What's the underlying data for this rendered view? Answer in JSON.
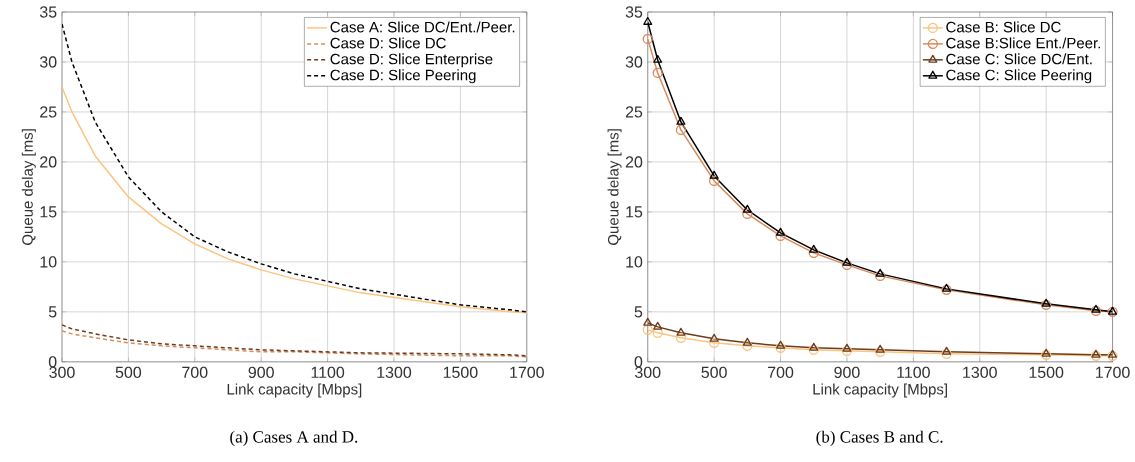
{
  "chart_data": [
    {
      "type": "line",
      "xlabel": "Link capacity [Mbps]",
      "ylabel": "Queue delay [ms]",
      "annotations": [
        "(a) Cases A and D."
      ],
      "x": [
        300,
        330,
        400,
        500,
        600,
        700,
        800,
        900,
        1000,
        1200,
        1500,
        1650,
        1700
      ],
      "xlim": [
        300,
        1700
      ],
      "ylim": [
        0,
        35
      ],
      "xticks": [
        300,
        500,
        700,
        900,
        1100,
        1300,
        1500,
        1700
      ],
      "yticks": [
        0,
        5,
        10,
        15,
        20,
        25,
        30,
        35
      ],
      "grid": true,
      "legend": "top right",
      "marker": "none",
      "series": [
        {
          "name": "Case A: Slice DC/Ent./Peer.",
          "color": "#fdc47f",
          "line_style": "solid",
          "values": [
            27.5,
            25.0,
            20.6,
            16.5,
            13.8,
            11.8,
            10.3,
            9.2,
            8.3,
            6.9,
            5.5,
            5.0,
            4.9
          ]
        },
        {
          "name": "Case D: Slice DC",
          "color": "#d9895a",
          "line_style": "dashed",
          "values": [
            3.1,
            2.8,
            2.4,
            1.9,
            1.6,
            1.4,
            1.2,
            1.0,
            1.0,
            0.8,
            0.6,
            0.6,
            0.5
          ]
        },
        {
          "name": "Case D: Slice Enterprise",
          "color": "#6b3c1e",
          "line_style": "dashed",
          "values": [
            3.7,
            3.3,
            2.8,
            2.2,
            1.8,
            1.6,
            1.4,
            1.2,
            1.1,
            0.9,
            0.8,
            0.7,
            0.6
          ]
        },
        {
          "name": "Case D: Slice Peering",
          "color": "#000000",
          "line_style": "dashed",
          "values": [
            33.8,
            30.0,
            24.0,
            18.5,
            15.0,
            12.5,
            11.0,
            9.8,
            8.8,
            7.3,
            5.7,
            5.2,
            5.0
          ]
        }
      ]
    },
    {
      "type": "line",
      "xlabel": "Link capacity [Mbps]",
      "ylabel": "Queue delay [ms]",
      "annotations": [
        "(b) Cases B and C."
      ],
      "x": [
        300,
        330,
        400,
        500,
        600,
        700,
        800,
        900,
        1000,
        1200,
        1500,
        1650,
        1700
      ],
      "xlim": [
        300,
        1700
      ],
      "ylim": [
        0,
        35
      ],
      "xticks": [
        300,
        500,
        700,
        900,
        1100,
        1300,
        1500,
        1700
      ],
      "yticks": [
        0,
        5,
        10,
        15,
        20,
        25,
        30,
        35
      ],
      "grid": true,
      "legend": "top right",
      "line_style": "solid",
      "series": [
        {
          "name": "Case B: Slice DC",
          "color": "#fdc47f",
          "marker": "circle",
          "values": [
            3.2,
            2.9,
            2.4,
            1.9,
            1.6,
            1.4,
            1.2,
            1.1,
            1.0,
            0.8,
            0.7,
            0.6,
            0.6
          ]
        },
        {
          "name": "Case B:Slice Ent./Peer.",
          "color": "#d9895a",
          "marker": "circle",
          "values": [
            32.3,
            28.9,
            23.2,
            18.1,
            14.8,
            12.6,
            10.9,
            9.7,
            8.6,
            7.2,
            5.7,
            5.1,
            5.0
          ]
        },
        {
          "name": "Case C: Slice DC/Ent.",
          "color": "#6b3c1e",
          "marker": "triangle",
          "values": [
            3.9,
            3.5,
            2.9,
            2.3,
            1.9,
            1.6,
            1.4,
            1.3,
            1.2,
            1.0,
            0.8,
            0.7,
            0.7
          ]
        },
        {
          "name": "Case C: Slice Peering",
          "color": "#000000",
          "marker": "triangle",
          "values": [
            34.0,
            30.2,
            24.0,
            18.6,
            15.2,
            12.9,
            11.2,
            9.9,
            8.8,
            7.3,
            5.8,
            5.2,
            5.0
          ]
        }
      ]
    }
  ]
}
